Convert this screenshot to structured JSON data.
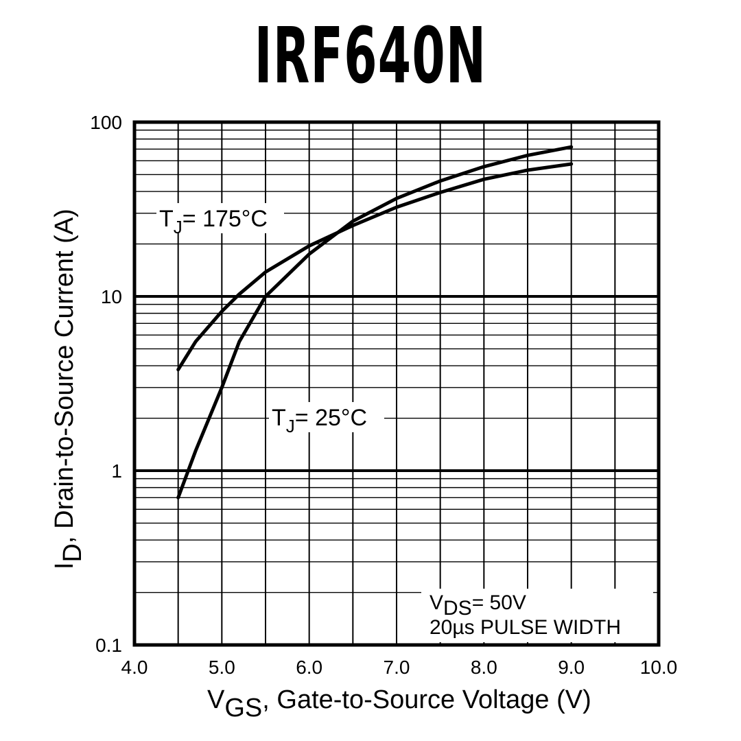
{
  "title": "IRF640N",
  "chart_data": {
    "type": "line",
    "xlabel": {
      "main": "V",
      "sub": "GS",
      "rest": ", Gate-to-Source Voltage (V)"
    },
    "ylabel": {
      "main": "I",
      "sub": "D",
      "rest": ",  Drain-to-Source Current (A)"
    },
    "xlim": [
      4.0,
      10.0
    ],
    "ylim": [
      0.1,
      100
    ],
    "yscale": "log",
    "grid": true,
    "xticks": [
      "4.0",
      "5.0",
      "6.0",
      "7.0",
      "8.0",
      "9.0",
      "10.0"
    ],
    "yticks": [
      "0.1",
      "1",
      "10",
      "100"
    ],
    "series": [
      {
        "name": "175°C",
        "x": [
          4.5,
          4.7,
          5.0,
          5.2,
          5.5,
          6.0,
          6.5,
          7.0,
          7.5,
          8.0,
          8.5,
          9.0
        ],
        "y": [
          3.8,
          5.5,
          8.2,
          10.3,
          13.8,
          19.5,
          25.5,
          32.5,
          39.5,
          47.0,
          53.0,
          57.5
        ]
      },
      {
        "name": "25°C",
        "x": [
          4.5,
          4.7,
          5.0,
          5.2,
          5.5,
          6.0,
          6.5,
          7.0,
          7.5,
          8.0,
          8.5,
          9.0
        ],
        "y": [
          0.7,
          1.3,
          3.0,
          5.5,
          10.0,
          17.5,
          27.0,
          36.5,
          46.0,
          55.5,
          64.5,
          72.0
        ]
      }
    ],
    "annotations": [
      {
        "sym": "T",
        "sub": "J",
        "rest": "= 175°C",
        "for": "175°C"
      },
      {
        "sym": "T",
        "sub": "J",
        "rest": "= 25°C",
        "for": "25°C"
      }
    ],
    "note": {
      "line1_sym": "V",
      "line1_sub": "DS",
      "line1_rest": "= 50V",
      "line2": "20µs PULSE WIDTH"
    }
  }
}
